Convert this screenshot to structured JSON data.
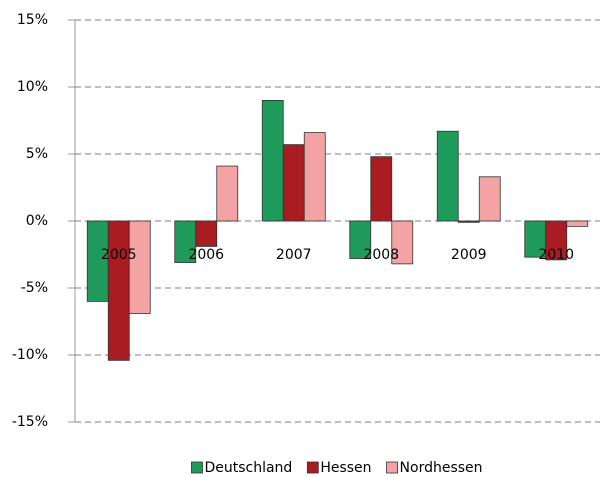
{
  "chart_data": {
    "type": "bar",
    "categories": [
      "2005",
      "2006",
      "2007",
      "2008",
      "2009",
      "2010"
    ],
    "series": [
      {
        "name": "Deutschland",
        "color": "#1e9a5a",
        "values": [
          -6.0,
          -3.1,
          9.0,
          -2.8,
          6.7,
          -2.7
        ]
      },
      {
        "name": "Hessen",
        "color": "#a81c22",
        "values": [
          -10.4,
          -1.9,
          5.7,
          4.8,
          -0.1,
          -2.9
        ]
      },
      {
        "name": "Nordhessen",
        "color": "#f4a3a5",
        "values": [
          -6.9,
          4.1,
          6.6,
          -3.2,
          3.3,
          -0.4
        ]
      }
    ],
    "ylim": [
      -15,
      15
    ],
    "yticks": [
      {
        "value": -15,
        "label": "-15%"
      },
      {
        "value": -10,
        "label": "-10%"
      },
      {
        "value": -5,
        "label": "-5%"
      },
      {
        "value": 0,
        "label": "0%"
      },
      {
        "value": 5,
        "label": "5%"
      },
      {
        "value": 10,
        "label": "10%"
      },
      {
        "value": 15,
        "label": "15%"
      }
    ],
    "grid": true,
    "legend": "bottom"
  }
}
